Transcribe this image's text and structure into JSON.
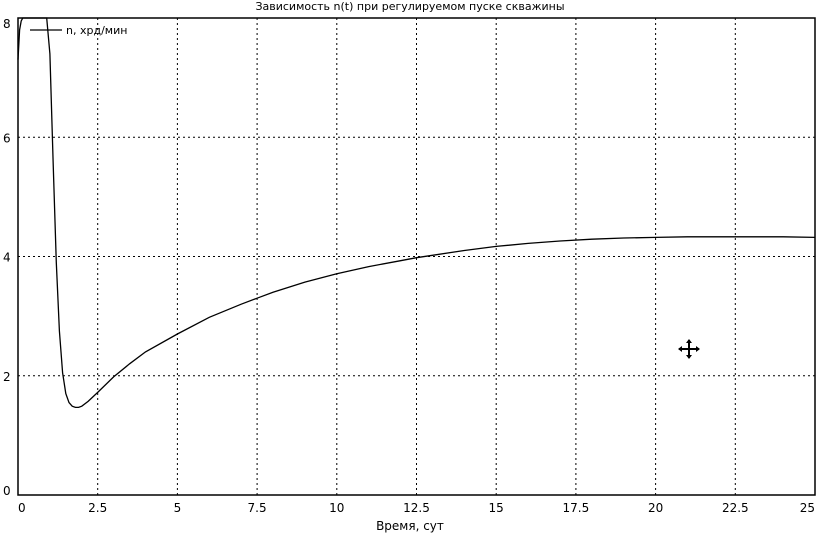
{
  "chart_data": {
    "type": "line",
    "title": "Зависимость n(t) при регулируемом пуске скважины",
    "xlabel": "Время, сут",
    "ylabel": "",
    "xlim": [
      0,
      25
    ],
    "ylim": [
      0,
      8
    ],
    "x_ticks": [
      "0",
      "2.5",
      "5",
      "7.5",
      "10",
      "12.5",
      "15",
      "17.5",
      "20",
      "22.5",
      "25"
    ],
    "y_ticks": [
      "0",
      "2",
      "4",
      "6",
      "8"
    ],
    "grid": true,
    "legend_position": "top-left",
    "series": [
      {
        "name": "n, хрд/мин",
        "color": "#000000",
        "x": [
          0.0,
          0.05,
          0.1,
          0.15,
          0.2,
          0.3,
          0.5,
          0.7,
          0.9,
          1.0,
          1.1,
          1.2,
          1.3,
          1.4,
          1.5,
          1.6,
          1.7,
          1.8,
          1.9,
          2.0,
          2.2,
          2.5,
          3.0,
          3.5,
          4.0,
          5.0,
          6.0,
          7.0,
          7.5,
          8.0,
          9.0,
          10.0,
          11.0,
          12.0,
          12.5,
          13.0,
          14.0,
          15.0,
          16.0,
          17.0,
          18.0,
          19.0,
          20.0,
          21.0,
          22.0,
          23.0,
          24.0,
          25.0
        ],
        "y": [
          7.3,
          7.8,
          7.95,
          8.0,
          8.0,
          8.0,
          8.0,
          8.0,
          8.0,
          7.4,
          5.6,
          3.9,
          2.75,
          2.05,
          1.7,
          1.55,
          1.49,
          1.47,
          1.47,
          1.49,
          1.57,
          1.72,
          1.98,
          2.2,
          2.4,
          2.7,
          2.98,
          3.2,
          3.3,
          3.4,
          3.57,
          3.71,
          3.83,
          3.93,
          3.98,
          4.02,
          4.1,
          4.17,
          4.22,
          4.26,
          4.29,
          4.31,
          4.32,
          4.33,
          4.33,
          4.33,
          4.33,
          4.32
        ]
      }
    ]
  },
  "cursor_icon": "move-cursor-icon"
}
